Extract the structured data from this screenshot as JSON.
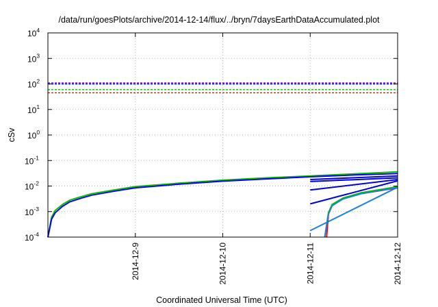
{
  "chart_data": {
    "type": "line",
    "title": "/data/run/goesPlots/archive/2014-12-14/flux/../bryn/7daysEarthDataAccumulated.plot",
    "xlabel": "Coordinated Universal Time (UTC)",
    "ylabel": "cSv",
    "y_scale": "log",
    "ylim": [
      0.0001,
      10000
    ],
    "xlim": [
      "2014-12-08",
      "2014-12-12"
    ],
    "x_ticks": [
      "2014-12-9",
      "2014-12-10",
      "2014-12-11",
      "2014-12-12"
    ],
    "y_ticks": [
      {
        "base": "10",
        "exp": "-4"
      },
      {
        "base": "10",
        "exp": "-3"
      },
      {
        "base": "10",
        "exp": "-2"
      },
      {
        "base": "10",
        "exp": "-1"
      },
      {
        "base": "10",
        "exp": "0"
      },
      {
        "base": "10",
        "exp": "1"
      },
      {
        "base": "10",
        "exp": "2"
      },
      {
        "base": "10",
        "exp": "3"
      },
      {
        "base": "10",
        "exp": "4"
      }
    ],
    "grid": true,
    "reference_lines": [
      {
        "color": "#9400d3",
        "y": 110
      },
      {
        "color": "#0000ff",
        "y": 100
      },
      {
        "color": "#00c000",
        "y": 60
      },
      {
        "color": "#ff0000",
        "y": 45
      }
    ],
    "series": [
      {
        "color": "#00c000",
        "x": [
          "2014-12-08 00:00",
          "2014-12-08 01:00",
          "2014-12-08 02:00",
          "2014-12-08 04:00",
          "2014-12-08 06:00",
          "2014-12-08 09:00",
          "2014-12-08 12:00",
          "2014-12-08 18:00",
          "2014-12-09 00:00",
          "2014-12-09 12:00",
          "2014-12-10 00:00",
          "2014-12-10 12:00",
          "2014-12-11 00:00",
          "2014-12-11 12:00",
          "2014-12-12 00:00"
        ],
        "y": [
          0.0001,
          0.0006,
          0.0011,
          0.0019,
          0.0028,
          0.0038,
          0.005,
          0.007,
          0.0095,
          0.013,
          0.017,
          0.021,
          0.025,
          0.03,
          0.036
        ]
      },
      {
        "color": "#0000ff",
        "x": [
          "2014-12-08 00:00",
          "2014-12-08 01:00",
          "2014-12-08 02:00",
          "2014-12-08 04:00",
          "2014-12-08 06:00",
          "2014-12-08 09:00",
          "2014-12-08 12:00",
          "2014-12-08 18:00",
          "2014-12-09 00:00",
          "2014-12-09 12:00",
          "2014-12-10 00:00",
          "2014-12-10 12:00",
          "2014-12-11 00:00",
          "2014-12-11 12:00",
          "2014-12-12 00:00"
        ],
        "y": [
          0.0001,
          0.0005,
          0.0009,
          0.0016,
          0.0024,
          0.0033,
          0.0044,
          0.0062,
          0.0085,
          0.0118,
          0.0155,
          0.019,
          0.023,
          0.027,
          0.031
        ]
      },
      {
        "color": "#0000dd",
        "x": [
          "2014-12-11 00:00",
          "2014-12-12 00:00"
        ],
        "y": [
          0.018,
          0.025
        ]
      },
      {
        "color": "#0000dd",
        "x": [
          "2014-12-11 00:00",
          "2014-12-12 00:00"
        ],
        "y": [
          0.015,
          0.021
        ]
      },
      {
        "color": "#0000dd",
        "x": [
          "2014-12-11 00:00",
          "2014-12-12 00:00"
        ],
        "y": [
          0.007,
          0.018
        ]
      },
      {
        "color": "#0000dd",
        "x": [
          "2014-12-11 00:00",
          "2014-12-12 00:00"
        ],
        "y": [
          0.002,
          0.016
        ]
      },
      {
        "color": "#1e7fe0",
        "x": [
          "2014-12-11 00:00",
          "2014-12-12 00:00"
        ],
        "y": [
          0.00018,
          0.009
        ]
      },
      {
        "color": "#ff0000",
        "x": [
          "2014-12-11 04:30",
          "2014-12-11 05:00",
          "2014-12-11 06:00",
          "2014-12-11 09:00",
          "2014-12-11 14:00",
          "2014-12-12 00:00"
        ],
        "y": [
          0.0001,
          0.0008,
          0.0017,
          0.0032,
          0.005,
          0.0085
        ]
      },
      {
        "color": "#00c000",
        "x": [
          "2014-12-11 04:00",
          "2014-12-11 05:00",
          "2014-12-11 06:00",
          "2014-12-11 09:00",
          "2014-12-11 14:00",
          "2014-12-12 00:00"
        ],
        "y": [
          0.0001,
          0.0009,
          0.0019,
          0.0034,
          0.0055,
          0.0095
        ]
      },
      {
        "color": "#1e7fe0",
        "x": [
          "2014-12-11 04:00",
          "2014-12-11 05:00",
          "2014-12-11 06:00",
          "2014-12-11 09:00",
          "2014-12-11 14:00",
          "2014-12-12 00:00"
        ],
        "y": [
          0.0001,
          0.0008,
          0.0017,
          0.0031,
          0.005,
          0.0088
        ]
      }
    ]
  }
}
